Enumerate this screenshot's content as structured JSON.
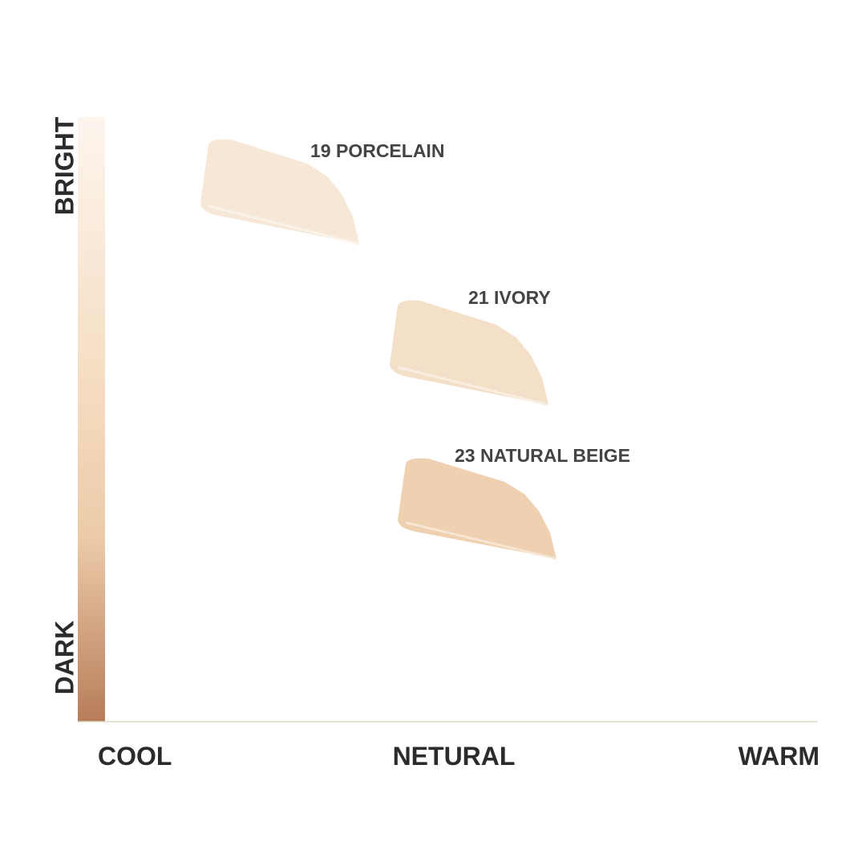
{
  "y_axis": {
    "top": "BRIGHT",
    "bottom": "DARK"
  },
  "x_axis": {
    "left": "COOL",
    "middle": "NETURAL",
    "right": "WARM"
  },
  "shades": [
    {
      "label": "19 PORCELAIN"
    },
    {
      "label": "21 IVORY"
    },
    {
      "label": "23 NATURAL BEIGE"
    }
  ]
}
